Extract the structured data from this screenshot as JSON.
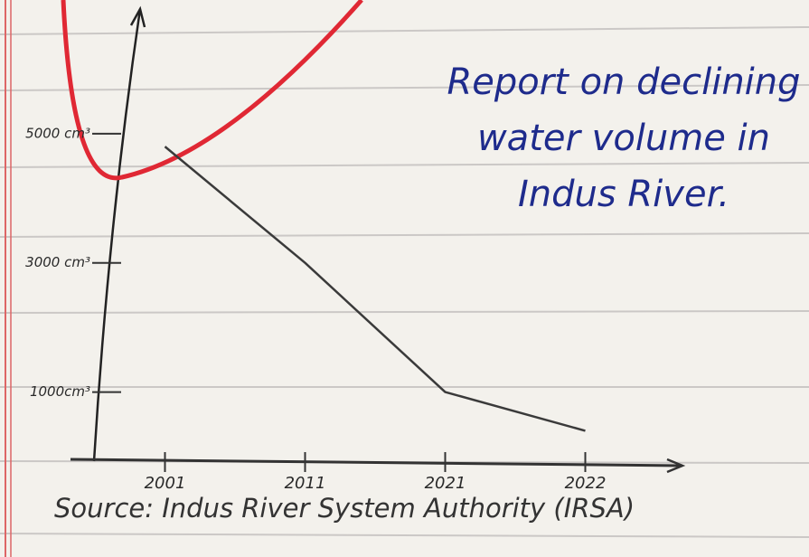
{
  "chart_data": {
    "type": "line",
    "title": "Report on declining water volume in Indus River.",
    "source": "Source: Indus River System Authority (IRSA)",
    "categories": [
      "2001",
      "2011",
      "2021",
      "2022"
    ],
    "values": [
      4800,
      3000,
      1000,
      400
    ],
    "color": "#3a3a3a",
    "title_color": "#1e2b8c",
    "ylim": [
      0,
      7000
    ],
    "yticks": [
      {
        "value": 1000,
        "label": "1000cm³"
      },
      {
        "value": 3000,
        "label": "3000 cm³"
      },
      {
        "value": 5000,
        "label": "5000 cm³"
      }
    ],
    "grid": false
  }
}
